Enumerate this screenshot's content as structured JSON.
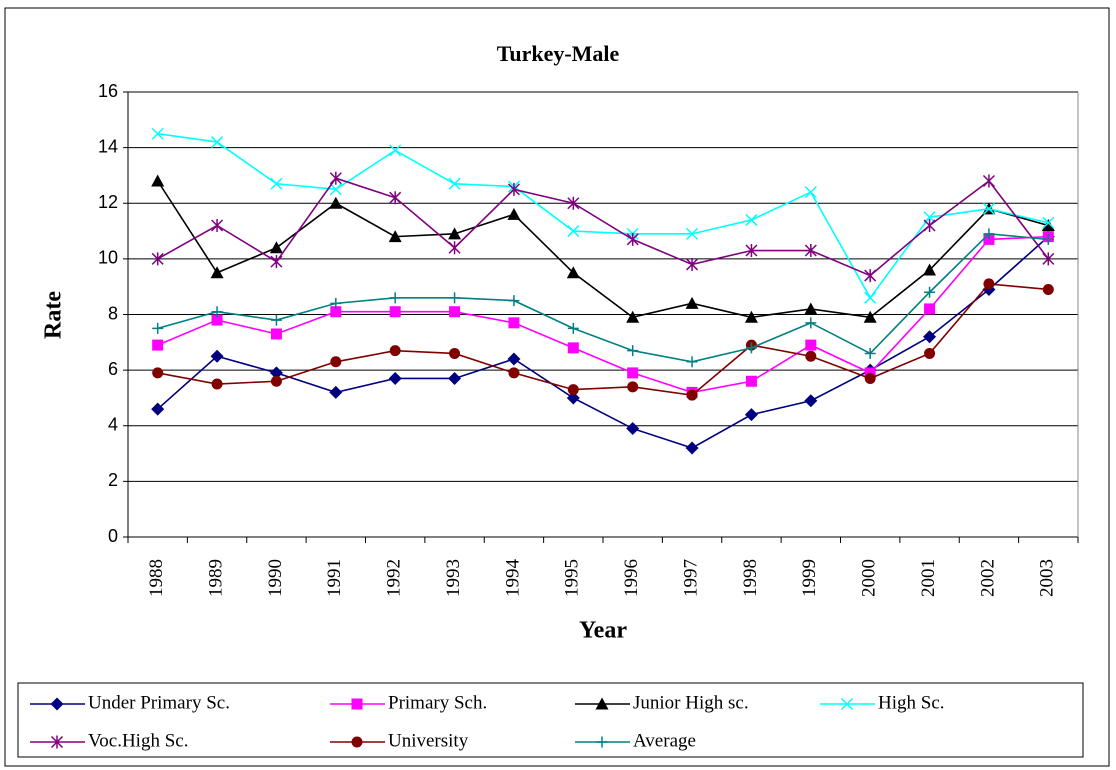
{
  "chart_data": {
    "type": "line",
    "title": "Turkey-Male",
    "x_label": "Year",
    "y_label": "Rate",
    "categories": [
      "1988",
      "1989",
      "1990",
      "1991",
      "1992",
      "1993",
      "1994",
      "1995",
      "1996",
      "1997",
      "1998",
      "1999",
      "2000",
      "2001",
      "2002",
      "2003"
    ],
    "ylim": [
      0,
      16
    ],
    "yticks": [
      0,
      2,
      4,
      6,
      8,
      10,
      12,
      14,
      16
    ],
    "grid": true,
    "series": [
      {
        "name": "Under Primary Sc.",
        "color": "#000080",
        "marker": "diamond",
        "values": [
          4.6,
          6.5,
          5.9,
          5.2,
          5.7,
          5.7,
          6.4,
          5.0,
          3.9,
          3.2,
          4.4,
          4.9,
          6.0,
          7.2,
          8.9,
          10.8
        ]
      },
      {
        "name": "Primary Sch.",
        "color": "#ff00ff",
        "marker": "square",
        "values": [
          6.9,
          7.8,
          7.3,
          8.1,
          8.1,
          8.1,
          7.7,
          6.8,
          5.9,
          5.2,
          5.6,
          6.9,
          5.9,
          8.2,
          10.7,
          10.8
        ]
      },
      {
        "name": "Junior High sc.",
        "color": "#000000",
        "marker": "triangle",
        "values": [
          12.8,
          9.5,
          10.4,
          12.0,
          10.8,
          10.9,
          11.6,
          9.5,
          7.9,
          8.4,
          7.9,
          8.2,
          7.9,
          9.6,
          11.8,
          11.2
        ]
      },
      {
        "name": "High Sc.",
        "color": "#00ffff",
        "marker": "x",
        "values": [
          14.5,
          14.2,
          12.7,
          12.5,
          13.9,
          12.7,
          12.6,
          11.0,
          10.9,
          10.9,
          11.4,
          12.4,
          8.6,
          11.5,
          11.8,
          11.3
        ]
      },
      {
        "name": "Voc.High Sc.",
        "color": "#800080",
        "marker": "star",
        "values": [
          10.0,
          11.2,
          9.9,
          12.9,
          12.2,
          10.4,
          12.5,
          12.0,
          10.7,
          9.8,
          10.3,
          10.3,
          9.4,
          11.2,
          12.8,
          10.0
        ]
      },
      {
        "name": "University",
        "color": "#800000",
        "marker": "circle",
        "values": [
          5.9,
          5.5,
          5.6,
          6.3,
          6.7,
          6.6,
          5.9,
          5.3,
          5.4,
          5.1,
          6.9,
          6.5,
          5.7,
          6.6,
          9.1,
          8.9
        ]
      },
      {
        "name": "Average",
        "color": "#008080",
        "marker": "plus",
        "values": [
          7.5,
          8.1,
          7.8,
          8.4,
          8.6,
          8.6,
          8.5,
          7.5,
          6.7,
          6.3,
          6.8,
          7.7,
          6.6,
          8.8,
          10.9,
          10.7
        ]
      }
    ]
  }
}
